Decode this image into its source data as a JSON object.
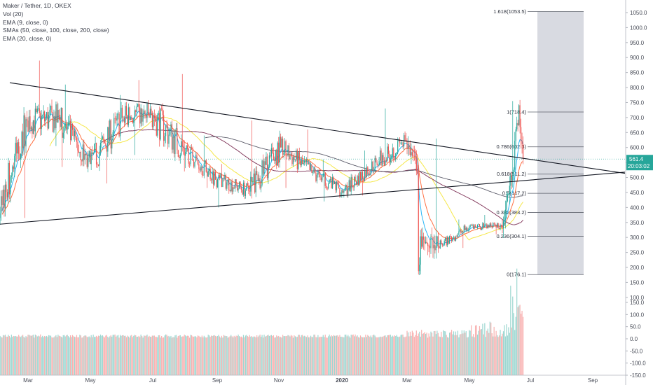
{
  "legend": {
    "symbol": "Maker / Tether, 1D, OKEX",
    "vol": "Vol (20)",
    "ema9": "EMA (9, close, 0)",
    "smas": "SMAs (50, close, 100, close, 200, close)",
    "ema20": "EMA (20, close, 0)"
  },
  "price_label": "561.4",
  "countdown_label": "20:03:02",
  "chart_data": {
    "type": "candlestick",
    "title": "Maker / Tether, 1D, OKEX",
    "price_axis": {
      "min": 100,
      "max": 1100,
      "ticks": [
        "1050.0",
        "1000.0",
        "950.0",
        "900.0",
        "850.0",
        "800.0",
        "750.0",
        "700.0",
        "650.0",
        "600.0",
        "550.0",
        "500.0",
        "450.0",
        "400.0",
        "350.0",
        "300.0",
        "250.0",
        "200.0",
        "150.0",
        "100.0"
      ]
    },
    "volume_axis": {
      "ticks": [
        "150.0",
        "100.0",
        "50.0",
        "0.0",
        "-50.0",
        "-100.0",
        "-150.0"
      ]
    },
    "x_axis": {
      "ticks": [
        "Mar",
        "May",
        "Jul",
        "Sep",
        "Nov",
        "2020",
        "Mar",
        "May",
        "Jul",
        "Sep"
      ],
      "bold": [
        "2020"
      ]
    },
    "current_price": 561.4,
    "fib_levels": [
      {
        "ratio": "1.618",
        "label": "1.618(1053.5)",
        "value": 1053.5
      },
      {
        "ratio": "1",
        "label": "1(718.4)",
        "value": 718.4
      },
      {
        "ratio": "0.786",
        "label": "0.786(602.3)",
        "value": 602.3
      },
      {
        "ratio": "0.618",
        "label": "0.618(511.2)",
        "value": 511.2
      },
      {
        "ratio": "0.5",
        "label": "0.5(447.2)",
        "value": 447.2
      },
      {
        "ratio": "0.382",
        "label": "0.382(383.2)",
        "value": 383.2
      },
      {
        "ratio": "0.236",
        "label": "0.236(304.1)",
        "value": 304.1
      },
      {
        "ratio": "0",
        "label": "0(176.1)",
        "value": 176.1
      }
    ],
    "trendlines": [
      {
        "name": "descending-resistance",
        "from": {
          "date": "2019-01-25",
          "price": 825
        },
        "to": {
          "date": "2020-10-05",
          "price": 510
        }
      },
      {
        "name": "ascending-support",
        "from": {
          "date": "2019-01-01",
          "price": 335
        },
        "to": {
          "date": "2020-10-05",
          "price": 520
        }
      }
    ],
    "candles_ohlc_monthly": [
      {
        "month": "2019-02",
        "o": 380,
        "h": 740,
        "l": 365,
        "c": 690
      },
      {
        "month": "2019-03",
        "o": 690,
        "h": 890,
        "l": 605,
        "c": 695
      },
      {
        "month": "2019-04",
        "o": 695,
        "h": 810,
        "l": 535,
        "c": 545
      },
      {
        "month": "2019-05",
        "o": 545,
        "h": 775,
        "l": 480,
        "c": 700
      },
      {
        "month": "2019-06",
        "o": 700,
        "h": 825,
        "l": 575,
        "c": 705
      },
      {
        "month": "2019-07",
        "o": 705,
        "h": 845,
        "l": 520,
        "c": 585
      },
      {
        "month": "2019-08",
        "o": 585,
        "h": 640,
        "l": 465,
        "c": 495
      },
      {
        "month": "2019-09",
        "o": 495,
        "h": 545,
        "l": 400,
        "c": 455
      },
      {
        "month": "2019-10",
        "o": 455,
        "h": 690,
        "l": 430,
        "c": 600
      },
      {
        "month": "2019-11",
        "o": 600,
        "h": 660,
        "l": 465,
        "c": 515
      },
      {
        "month": "2019-12",
        "o": 515,
        "h": 560,
        "l": 420,
        "c": 455
      },
      {
        "month": "2020-01",
        "o": 455,
        "h": 590,
        "l": 440,
        "c": 550
      },
      {
        "month": "2020-02",
        "o": 550,
        "h": 730,
        "l": 540,
        "c": 620
      },
      {
        "month": "2020-03",
        "o": 620,
        "h": 630,
        "l": 176,
        "c": 270
      },
      {
        "month": "2020-04",
        "o": 270,
        "h": 360,
        "l": 265,
        "c": 335
      },
      {
        "month": "2020-05",
        "o": 335,
        "h": 375,
        "l": 310,
        "c": 340
      },
      {
        "month": "2020-06",
        "o": 340,
        "h": 755,
        "l": 330,
        "c": 561.4
      }
    ]
  }
}
